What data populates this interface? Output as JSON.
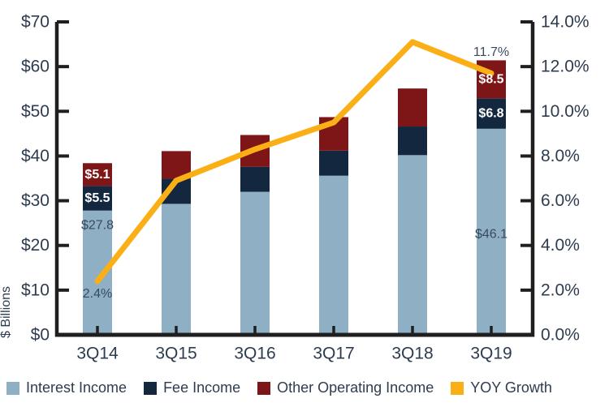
{
  "chart_data": {
    "type": "bar",
    "subtype": "stacked-bar-with-line",
    "categories": [
      "3Q14",
      "3Q15",
      "3Q16",
      "3Q17",
      "3Q18",
      "3Q19"
    ],
    "series": [
      {
        "name": "Interest Income",
        "type": "bar",
        "axis": "left",
        "color": "#8fafc5",
        "values": [
          27.8,
          29.3,
          32.0,
          35.6,
          40.2,
          46.1
        ]
      },
      {
        "name": "Fee Income",
        "type": "bar",
        "axis": "left",
        "color": "#13273f",
        "values": [
          5.5,
          5.6,
          5.6,
          5.6,
          6.4,
          6.8
        ]
      },
      {
        "name": "Other Operating Income",
        "type": "bar",
        "axis": "left",
        "color": "#7e1517",
        "values": [
          5.1,
          6.2,
          7.1,
          7.5,
          8.5,
          8.5
        ]
      },
      {
        "name": "YOY Growth",
        "type": "line",
        "axis": "right",
        "color": "#fbaf16",
        "values": [
          2.4,
          6.9,
          8.3,
          9.5,
          13.1,
          11.7
        ]
      }
    ],
    "left_axis": {
      "label": "$ Billions",
      "min": 0,
      "max": 70,
      "step": 10,
      "tick_labels": [
        "$0",
        "$10",
        "$20",
        "$30",
        "$40",
        "$50",
        "$60",
        "$70"
      ]
    },
    "right_axis": {
      "min": 0,
      "max": 14,
      "step": 2,
      "tick_labels": [
        "0.0%",
        "2.0%",
        "4.0%",
        "6.0%",
        "8.0%",
        "10.0%",
        "12.0%",
        "14.0%"
      ]
    },
    "grid": false,
    "legend_position": "bottom",
    "annotations": [
      {
        "bar": 0,
        "text": "$5.1",
        "mode": "segment",
        "segment": 2,
        "style": "light"
      },
      {
        "bar": 0,
        "text": "$5.5",
        "mode": "segment",
        "segment": 1,
        "style": "light"
      },
      {
        "bar": 0,
        "text": "$27.8",
        "mode": "dollars",
        "at": 24.5,
        "style": "dark"
      },
      {
        "bar": 0,
        "text": "2.4%",
        "mode": "dollars",
        "at": 9.2,
        "style": "dark"
      },
      {
        "bar": 5,
        "text": "11.7%",
        "mode": "above",
        "style": "dark"
      },
      {
        "bar": 5,
        "text": "$8.5",
        "mode": "segment",
        "segment": 2,
        "style": "light"
      },
      {
        "bar": 5,
        "text": "$6.8",
        "mode": "segment",
        "segment": 1,
        "style": "light"
      },
      {
        "bar": 5,
        "text": "$46.1",
        "mode": "dollars",
        "at": 22.5,
        "style": "dark"
      }
    ],
    "colors": {
      "axis_line": "#1f1f1f",
      "tick_label": "#2e3c4f",
      "annotation_dark": "#3a4a5e",
      "annotation_light": "#ffffff"
    }
  }
}
